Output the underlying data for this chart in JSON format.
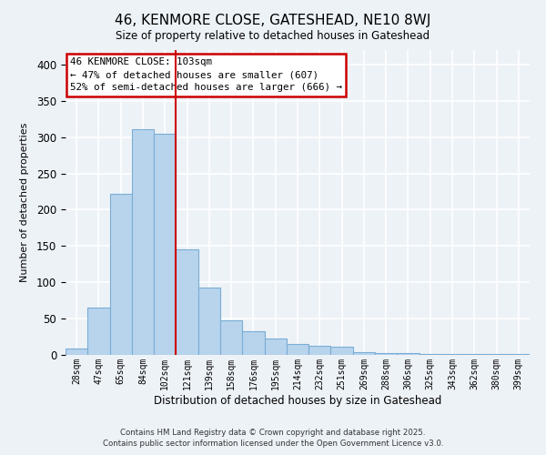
{
  "title": "46, KENMORE CLOSE, GATESHEAD, NE10 8WJ",
  "subtitle": "Size of property relative to detached houses in Gateshead",
  "xlabel": "Distribution of detached houses by size in Gateshead",
  "ylabel": "Number of detached properties",
  "bar_labels": [
    "28sqm",
    "47sqm",
    "65sqm",
    "84sqm",
    "102sqm",
    "121sqm",
    "139sqm",
    "158sqm",
    "176sqm",
    "195sqm",
    "214sqm",
    "232sqm",
    "251sqm",
    "269sqm",
    "288sqm",
    "306sqm",
    "325sqm",
    "343sqm",
    "362sqm",
    "380sqm",
    "399sqm"
  ],
  "bar_values": [
    9,
    65,
    222,
    311,
    305,
    145,
    93,
    48,
    32,
    22,
    15,
    12,
    11,
    4,
    2,
    2,
    1,
    1,
    1,
    1,
    1
  ],
  "bar_color": "#b8d4ed",
  "bar_edge_color": "#7aadd4",
  "property_line_index": 4,
  "property_line_color": "#cc0000",
  "annotation_line1": "46 KENMORE CLOSE: 103sqm",
  "annotation_line2": "← 47% of detached houses are smaller (607)",
  "annotation_line3": "52% of semi-detached houses are larger (666) →",
  "annotation_box_color": "#ffffff",
  "annotation_border_color": "#cc0000",
  "ylim": [
    0,
    420
  ],
  "yticks": [
    0,
    50,
    100,
    150,
    200,
    250,
    300,
    350,
    400
  ],
  "background_color": "#edf2f7",
  "grid_color": "#ffffff",
  "footer_line1": "Contains HM Land Registry data © Crown copyright and database right 2025.",
  "footer_line2": "Contains public sector information licensed under the Open Government Licence v3.0."
}
